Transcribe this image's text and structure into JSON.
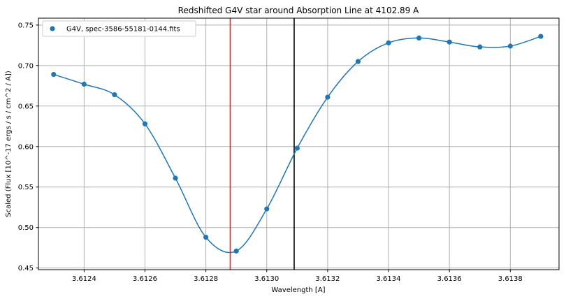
{
  "chart_data": {
    "type": "scatter",
    "title": "Redshifted G4V star around Absorption Line at 4102.89 A",
    "xlabel": "Wavelength [A]",
    "ylabel": "Scaled (Flux [10^-17 ergs / s / cm^2 / A])",
    "xlim": [
      3.61225,
      3.61396
    ],
    "ylim": [
      0.448,
      0.7585
    ],
    "x_ticks": [
      3.6124,
      3.6126,
      3.6128,
      3.613,
      3.6132,
      3.6134,
      3.6136,
      3.6138
    ],
    "x_tick_labels": [
      "3.6124",
      "3.6126",
      "3.6128",
      "3.6130",
      "3.6132",
      "3.6134",
      "3.6136",
      "3.6138"
    ],
    "y_ticks": [
      0.45,
      0.5,
      0.55,
      0.6,
      0.65,
      0.7,
      0.75
    ],
    "y_tick_labels": [
      "0.45",
      "0.50",
      "0.55",
      "0.60",
      "0.65",
      "0.70",
      "0.75"
    ],
    "grid": true,
    "legend_position": "top-left",
    "series": [
      {
        "name": "G4V, spec-3586-55181-0144.fits",
        "marker": "circle",
        "color": "#1f77b4",
        "x": [
          3.6123,
          3.6124,
          3.6125,
          3.6126,
          3.6127,
          3.6128,
          3.6129,
          3.613,
          3.6131,
          3.6132,
          3.6133,
          3.6134,
          3.6135,
          3.6136,
          3.6137,
          3.6138,
          3.6139
        ],
        "y": [
          0.689,
          0.677,
          0.664,
          0.628,
          0.561,
          0.488,
          0.471,
          0.523,
          0.598,
          0.661,
          0.705,
          0.728,
          0.734,
          0.729,
          0.723,
          0.724,
          0.736
        ]
      }
    ],
    "vertical_lines": [
      {
        "x": 3.61288,
        "color": "#e8281e"
      },
      {
        "x": 3.61309,
        "color": "#000000"
      }
    ],
    "fit_curve_color": "#1f77b4"
  }
}
